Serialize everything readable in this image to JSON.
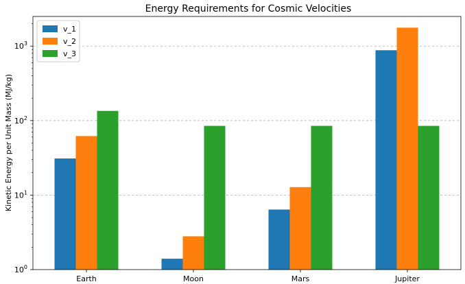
{
  "chart_data": {
    "type": "bar",
    "title": "Energy Requirements for Cosmic Velocities",
    "xlabel": "",
    "ylabel": "Kinetic Energy per Unit Mass (MJ/kg)",
    "y_scale": "log",
    "ylim": [
      1,
      2500
    ],
    "categories": [
      "Earth",
      "Moon",
      "Mars",
      "Jupiter"
    ],
    "series": [
      {
        "name": "v_1",
        "color": "#1f77b4",
        "values": [
          31,
          1.4,
          6.4,
          880
        ]
      },
      {
        "name": "v_2",
        "color": "#ff7f0e",
        "values": [
          62,
          2.8,
          12.8,
          1770
        ]
      },
      {
        "name": "v_3",
        "color": "#2ca02c",
        "values": [
          135,
          85,
          85,
          85
        ]
      }
    ],
    "y_ticks": [
      {
        "base": "10",
        "exp": "0",
        "value": 1
      },
      {
        "base": "10",
        "exp": "1",
        "value": 10
      },
      {
        "base": "10",
        "exp": "2",
        "value": 100
      },
      {
        "base": "10",
        "exp": "3",
        "value": 1000
      }
    ],
    "grid": "y-major dashed",
    "legend_position": "top-left"
  }
}
